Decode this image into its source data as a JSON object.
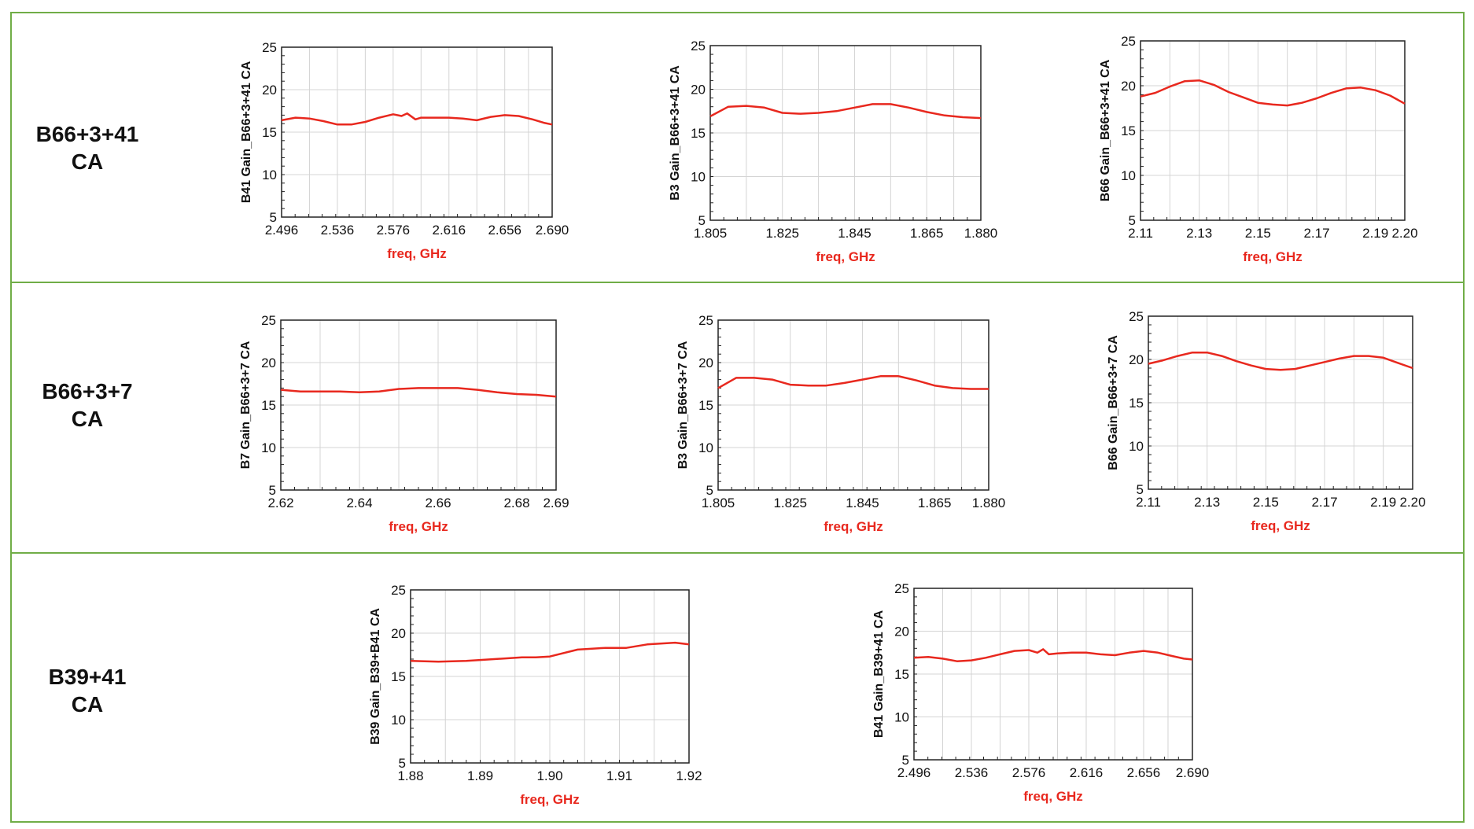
{
  "rows": [
    {
      "label_line1": "B66+3+41",
      "label_line2": "CA"
    },
    {
      "label_line1": "B66+3+7",
      "label_line2": "CA"
    },
    {
      "label_line1": "B39+41",
      "label_line2": "CA"
    }
  ],
  "colors": {
    "border": "#70ad47",
    "trace": "#e8281e",
    "xlabel": "#e8281e",
    "grid": "#d4d4d4"
  },
  "chart_data": [
    {
      "type": "line",
      "ylabel": "B41 Gain_B66+3+41 CA",
      "xlabel": "freq, GHz",
      "xlim": [
        2.496,
        2.69
      ],
      "ylim": [
        5,
        25
      ],
      "x_ticks": [
        "2.496",
        "2.536",
        "2.576",
        "2.616",
        "2.656",
        "2.690"
      ],
      "y_ticks": [
        "5",
        "10",
        "15",
        "20",
        "25"
      ],
      "grid": true,
      "series": [
        {
          "x": [
            2.496,
            2.506,
            2.516,
            2.526,
            2.536,
            2.546,
            2.556,
            2.566,
            2.576,
            2.582,
            2.586,
            2.592,
            2.596,
            2.606,
            2.616,
            2.626,
            2.636,
            2.646,
            2.656,
            2.666,
            2.676,
            2.684,
            2.69
          ],
          "y": [
            16.4,
            16.7,
            16.6,
            16.3,
            15.9,
            15.9,
            16.2,
            16.7,
            17.1,
            16.9,
            17.2,
            16.5,
            16.7,
            16.7,
            16.7,
            16.6,
            16.4,
            16.8,
            17.0,
            16.9,
            16.5,
            16.1,
            15.9
          ]
        }
      ]
    },
    {
      "type": "line",
      "ylabel": "B3 Gain_B66+3+41 CA",
      "xlabel": "freq, GHz",
      "xlim": [
        1.805,
        1.88
      ],
      "ylim": [
        5,
        25
      ],
      "x_ticks": [
        "1.805",
        "1.825",
        "1.845",
        "1.865",
        "1.880"
      ],
      "y_ticks": [
        "5",
        "10",
        "15",
        "20",
        "25"
      ],
      "grid": true,
      "series": [
        {
          "x": [
            1.805,
            1.81,
            1.815,
            1.82,
            1.825,
            1.83,
            1.835,
            1.84,
            1.845,
            1.85,
            1.855,
            1.86,
            1.865,
            1.87,
            1.875,
            1.88
          ],
          "y": [
            16.9,
            18.0,
            18.1,
            17.9,
            17.3,
            17.2,
            17.3,
            17.5,
            17.9,
            18.3,
            18.3,
            17.9,
            17.4,
            17.0,
            16.8,
            16.7
          ]
        }
      ]
    },
    {
      "type": "line",
      "ylabel": "B66 Gain_B66+3+41 CA",
      "xlabel": "freq, GHz",
      "xlim": [
        2.11,
        2.2
      ],
      "ylim": [
        5,
        25
      ],
      "x_ticks": [
        "2.11",
        "2.13",
        "2.15",
        "2.17",
        "2.19",
        "2.20"
      ],
      "y_ticks": [
        "5",
        "10",
        "15",
        "20",
        "25"
      ],
      "grid": true,
      "series": [
        {
          "x": [
            2.11,
            2.115,
            2.12,
            2.125,
            2.13,
            2.135,
            2.14,
            2.145,
            2.15,
            2.155,
            2.16,
            2.165,
            2.17,
            2.175,
            2.18,
            2.185,
            2.19,
            2.195,
            2.2
          ],
          "y": [
            18.8,
            19.2,
            19.9,
            20.5,
            20.6,
            20.1,
            19.3,
            18.7,
            18.1,
            17.9,
            17.8,
            18.1,
            18.6,
            19.2,
            19.7,
            19.8,
            19.5,
            18.9,
            18.0
          ]
        }
      ]
    },
    {
      "type": "line",
      "ylabel": "B7 Gain_B66+3+7 CA",
      "xlabel": "freq, GHz",
      "xlim": [
        2.62,
        2.69
      ],
      "ylim": [
        5,
        25
      ],
      "x_ticks": [
        "2.62",
        "2.64",
        "2.66",
        "2.68",
        "2.69"
      ],
      "y_ticks": [
        "5",
        "10",
        "15",
        "20",
        "25"
      ],
      "grid": true,
      "series": [
        {
          "x": [
            2.62,
            2.625,
            2.63,
            2.635,
            2.64,
            2.645,
            2.65,
            2.655,
            2.66,
            2.665,
            2.67,
            2.675,
            2.68,
            2.685,
            2.69
          ],
          "y": [
            16.8,
            16.6,
            16.6,
            16.6,
            16.5,
            16.6,
            16.9,
            17.0,
            17.0,
            17.0,
            16.8,
            16.5,
            16.3,
            16.2,
            16.0
          ]
        }
      ]
    },
    {
      "type": "line",
      "ylabel": "B3 Gain_B66+3+7 CA",
      "xlabel": "freq, GHz",
      "xlim": [
        1.805,
        1.88
      ],
      "ylim": [
        5,
        25
      ],
      "x_ticks": [
        "1.805",
        "1.825",
        "1.845",
        "1.865",
        "1.880"
      ],
      "y_ticks": [
        "5",
        "10",
        "15",
        "20",
        "25"
      ],
      "grid": true,
      "series": [
        {
          "x": [
            1.805,
            1.81,
            1.815,
            1.82,
            1.825,
            1.83,
            1.835,
            1.84,
            1.845,
            1.85,
            1.855,
            1.86,
            1.865,
            1.87,
            1.875,
            1.88
          ],
          "y": [
            17.0,
            18.2,
            18.2,
            18.0,
            17.4,
            17.3,
            17.3,
            17.6,
            18.0,
            18.4,
            18.4,
            17.9,
            17.3,
            17.0,
            16.9,
            16.9
          ]
        }
      ]
    },
    {
      "type": "line",
      "ylabel": "B66 Gain_B66+3+7 CA",
      "xlabel": "freq, GHz",
      "xlim": [
        2.11,
        2.2
      ],
      "ylim": [
        5,
        25
      ],
      "x_ticks": [
        "2.11",
        "2.13",
        "2.15",
        "2.17",
        "2.19",
        "2.20"
      ],
      "y_ticks": [
        "5",
        "10",
        "15",
        "20",
        "25"
      ],
      "grid": true,
      "series": [
        {
          "x": [
            2.11,
            2.115,
            2.12,
            2.125,
            2.13,
            2.135,
            2.14,
            2.145,
            2.15,
            2.155,
            2.16,
            2.165,
            2.17,
            2.175,
            2.18,
            2.185,
            2.19,
            2.195,
            2.2
          ],
          "y": [
            19.5,
            19.9,
            20.4,
            20.8,
            20.8,
            20.4,
            19.8,
            19.3,
            18.9,
            18.8,
            18.9,
            19.3,
            19.7,
            20.1,
            20.4,
            20.4,
            20.2,
            19.6,
            19.0
          ]
        }
      ]
    },
    {
      "type": "line",
      "ylabel": "B39 Gain_B39+B41 CA",
      "xlabel": "freq, GHz",
      "xlim": [
        1.88,
        1.92
      ],
      "ylim": [
        5,
        25
      ],
      "x_ticks": [
        "1.88",
        "1.89",
        "1.90",
        "1.91",
        "1.92"
      ],
      "y_ticks": [
        "5",
        "10",
        "15",
        "20",
        "25"
      ],
      "grid": true,
      "series": [
        {
          "x": [
            1.88,
            1.884,
            1.888,
            1.892,
            1.896,
            1.898,
            1.9,
            1.904,
            1.908,
            1.911,
            1.914,
            1.918,
            1.92
          ],
          "y": [
            16.8,
            16.7,
            16.8,
            17.0,
            17.2,
            17.2,
            17.3,
            18.1,
            18.3,
            18.3,
            18.7,
            18.9,
            18.7
          ]
        }
      ]
    },
    {
      "type": "line",
      "ylabel": "B41 Gain_B39+41 CA",
      "xlabel": "freq, GHz",
      "xlim": [
        2.496,
        2.69
      ],
      "ylim": [
        5,
        25
      ],
      "x_ticks": [
        "2.496",
        "2.536",
        "2.576",
        "2.616",
        "2.656",
        "2.690"
      ],
      "y_ticks": [
        "5",
        "10",
        "15",
        "20",
        "25"
      ],
      "grid": true,
      "series": [
        {
          "x": [
            2.496,
            2.506,
            2.516,
            2.526,
            2.536,
            2.546,
            2.556,
            2.566,
            2.576,
            2.582,
            2.586,
            2.59,
            2.596,
            2.606,
            2.616,
            2.626,
            2.636,
            2.646,
            2.656,
            2.666,
            2.676,
            2.684,
            2.69
          ],
          "y": [
            16.9,
            17.0,
            16.8,
            16.5,
            16.6,
            16.9,
            17.3,
            17.7,
            17.8,
            17.5,
            17.9,
            17.3,
            17.4,
            17.5,
            17.5,
            17.3,
            17.2,
            17.5,
            17.7,
            17.5,
            17.1,
            16.8,
            16.7
          ]
        }
      ]
    }
  ]
}
